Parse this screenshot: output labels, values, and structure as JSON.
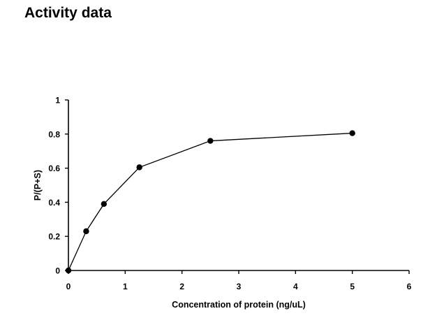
{
  "title": "Activity data",
  "chart_data": {
    "type": "line",
    "title": "",
    "xlabel": "Concentration of protein (ng/uL)",
    "ylabel": "P/(P+S)",
    "xlim": [
      0,
      6
    ],
    "ylim": [
      0,
      1
    ],
    "x_ticks": [
      "0",
      "1",
      "2",
      "3",
      "4",
      "5",
      "6"
    ],
    "y_ticks": [
      "0",
      "0.2",
      "0.4",
      "0.6",
      "0.8",
      "1"
    ],
    "grid": false,
    "legend": "none",
    "marker": "filled-circle",
    "color": "#000000",
    "series": [
      {
        "x": [
          0,
          0.3125,
          0.625,
          1.25,
          2.5,
          5
        ],
        "y": [
          0,
          0.23,
          0.39,
          0.605,
          0.76,
          0.805
        ]
      }
    ]
  }
}
